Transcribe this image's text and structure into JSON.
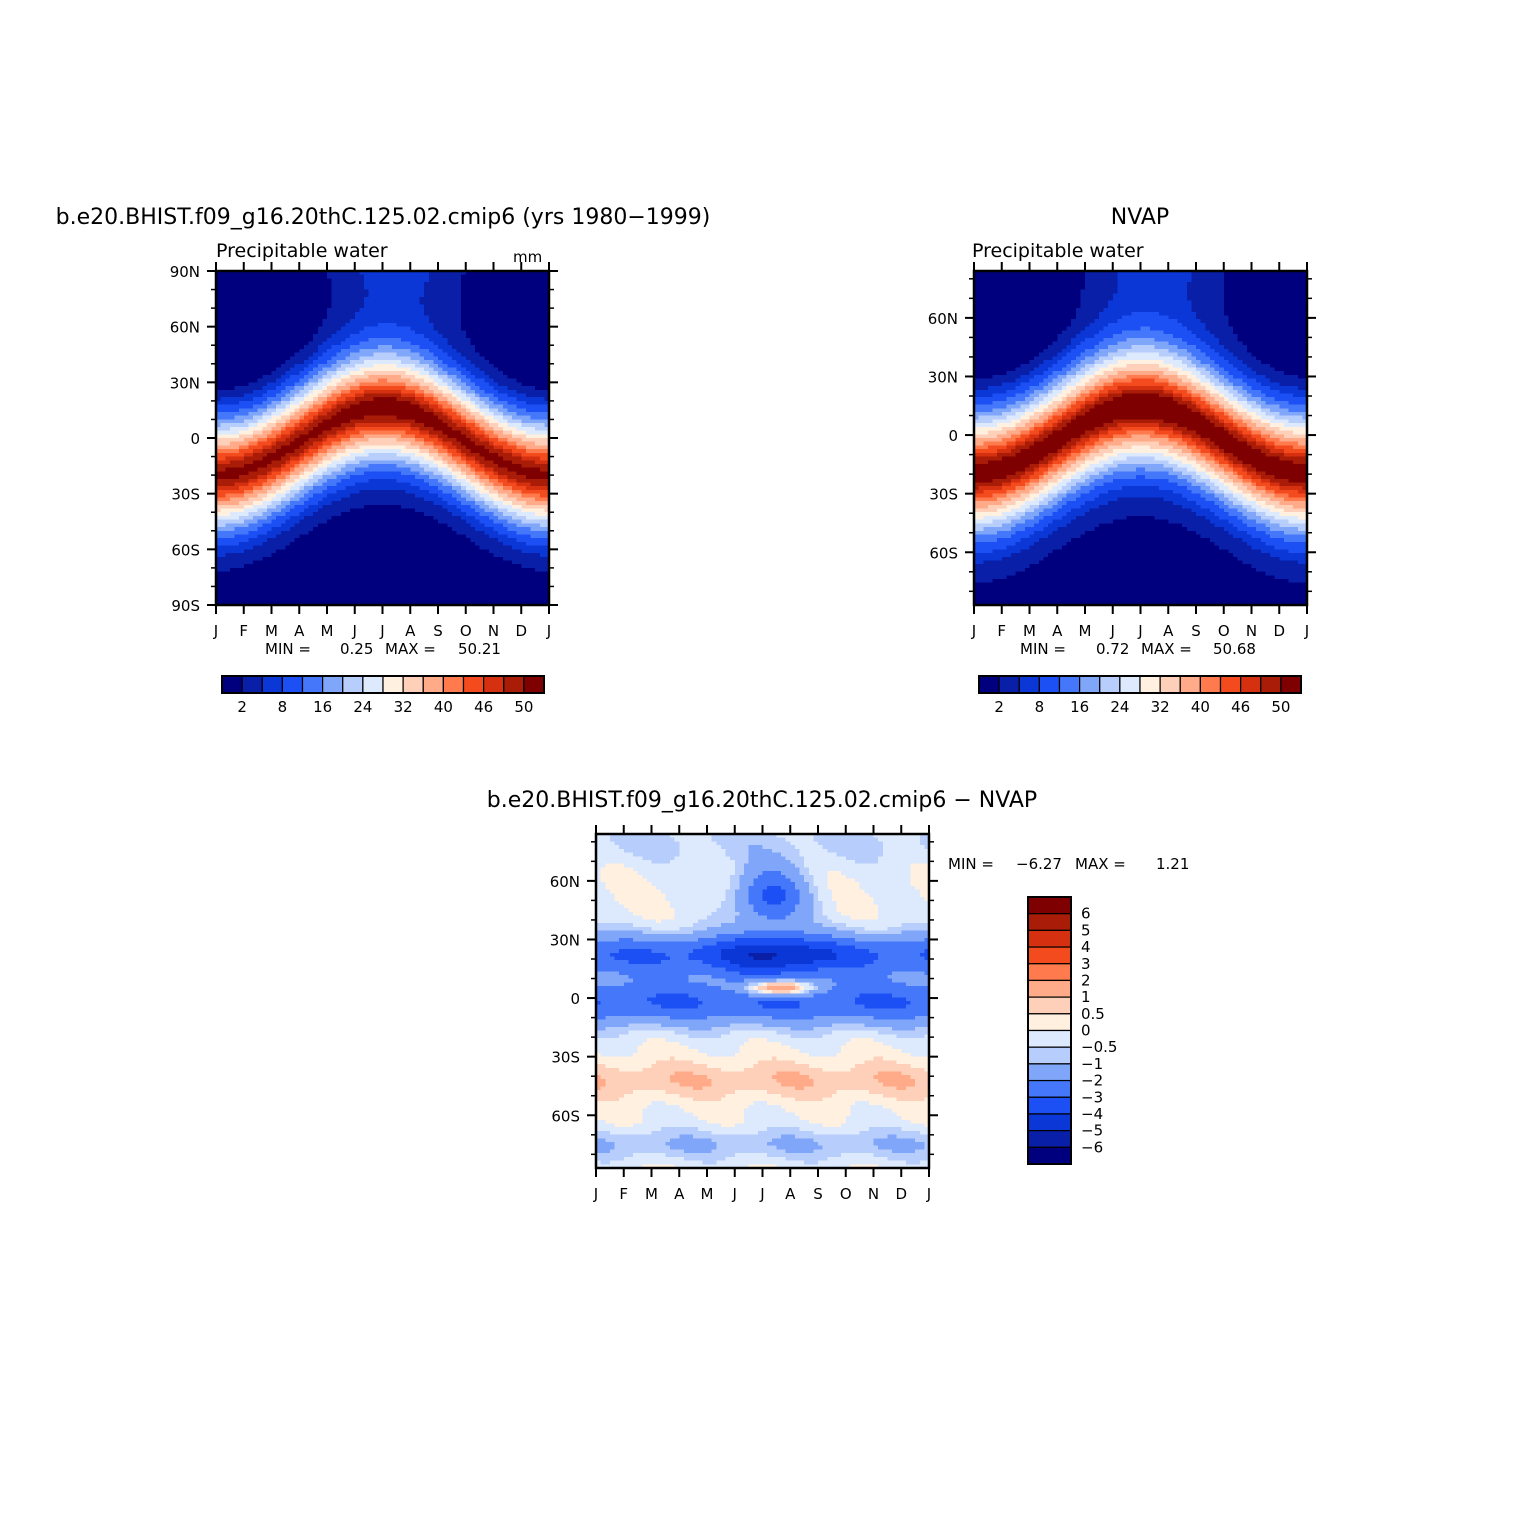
{
  "chart_data": [
    {
      "type": "heatmap",
      "id": "model",
      "title": "b.e20.BHIST.f09_g16.20thC.125.02.cmip6 (yrs 1980−1999)",
      "subtitle": "Precipitable water",
      "units": "mm",
      "xlabel": "",
      "ylabel": "",
      "x_ticks": [
        "J",
        "F",
        "M",
        "A",
        "M",
        "J",
        "J",
        "A",
        "S",
        "O",
        "N",
        "D",
        "J"
      ],
      "y_ticks": [
        "90N",
        "60N",
        "30N",
        "0",
        "30S",
        "60S",
        "90S"
      ],
      "stats": {
        "min_label": "MIN =",
        "min": "0.25",
        "max_label": "MAX =",
        "max": "50.21"
      },
      "colorbar": {
        "labels": [
          "2",
          "8",
          "16",
          "24",
          "32",
          "40",
          "46",
          "50"
        ],
        "colors": [
          "#00007f",
          "#0a1fa8",
          "#0b37d6",
          "#1c50f4",
          "#4477f9",
          "#80a6fa",
          "#b7cdfc",
          "#dde9fd",
          "#fff0e0",
          "#ffd0b9",
          "#ffaa88",
          "#ff7a4d",
          "#f34a1e",
          "#d53010",
          "#a81c08",
          "#7f0000"
        ]
      },
      "model": {
        "ampl": 18,
        "phase": -2,
        "sigma": 26,
        "peak": 50.2,
        "pole": 0.25
      }
    },
    {
      "type": "heatmap",
      "id": "obs",
      "title": "NVAP",
      "subtitle": "Precipitable water",
      "x_ticks": [
        "J",
        "F",
        "M",
        "A",
        "M",
        "J",
        "J",
        "A",
        "S",
        "O",
        "N",
        "D",
        "J"
      ],
      "y_ticks": [
        "60N",
        "30N",
        "0",
        "30S",
        "60S"
      ],
      "stats": {
        "min_label": "MIN =",
        "min": "0.72",
        "max_label": "MAX =",
        "max": "50.68"
      },
      "colorbar": {
        "labels": [
          "2",
          "8",
          "16",
          "24",
          "32",
          "40",
          "46",
          "50"
        ],
        "colors": [
          "#00007f",
          "#0a1fa8",
          "#0b37d6",
          "#1c50f4",
          "#4477f9",
          "#80a6fa",
          "#b7cdfc",
          "#dde9fd",
          "#fff0e0",
          "#ffd0b9",
          "#ffaa88",
          "#ff7a4d",
          "#f34a1e",
          "#d53010",
          "#a81c08",
          "#7f0000"
        ]
      },
      "model": {
        "ampl": 17,
        "phase": -2.5,
        "sigma": 27,
        "peak": 50.7,
        "pole": 0.72
      }
    },
    {
      "type": "heatmap",
      "id": "diff",
      "title": "b.e20.BHIST.f09_g16.20thC.125.02.cmip6 − NVAP",
      "x_ticks": [
        "J",
        "F",
        "M",
        "A",
        "M",
        "J",
        "J",
        "A",
        "S",
        "O",
        "N",
        "D",
        "J"
      ],
      "y_ticks": [
        "60N",
        "30N",
        "0",
        "30S",
        "60S"
      ],
      "stats": {
        "min_label": "MIN =",
        "min": "−6.27",
        "max_label": "MAX =",
        "max": "1.21"
      },
      "colorbar": {
        "labels": [
          "6",
          "5",
          "4",
          "3",
          "2",
          "1",
          "0.5",
          "0",
          "−0.5",
          "−1",
          "−2",
          "−3",
          "−4",
          "−5",
          "−6"
        ],
        "colors": [
          "#7f0000",
          "#a81c08",
          "#d53010",
          "#f34a1e",
          "#ff7a4d",
          "#ffaa88",
          "#ffd0b9",
          "#fff0e0",
          "#dde9fd",
          "#b7cdfc",
          "#80a6fa",
          "#4477f9",
          "#1c50f4",
          "#0b37d6",
          "#0a1fa8",
          "#00007f"
        ],
        "bounds": [
          -6,
          -5,
          -4,
          -3,
          -2,
          -1,
          -0.5,
          0,
          0.5,
          1,
          2,
          3,
          4,
          5,
          6
        ]
      }
    }
  ]
}
